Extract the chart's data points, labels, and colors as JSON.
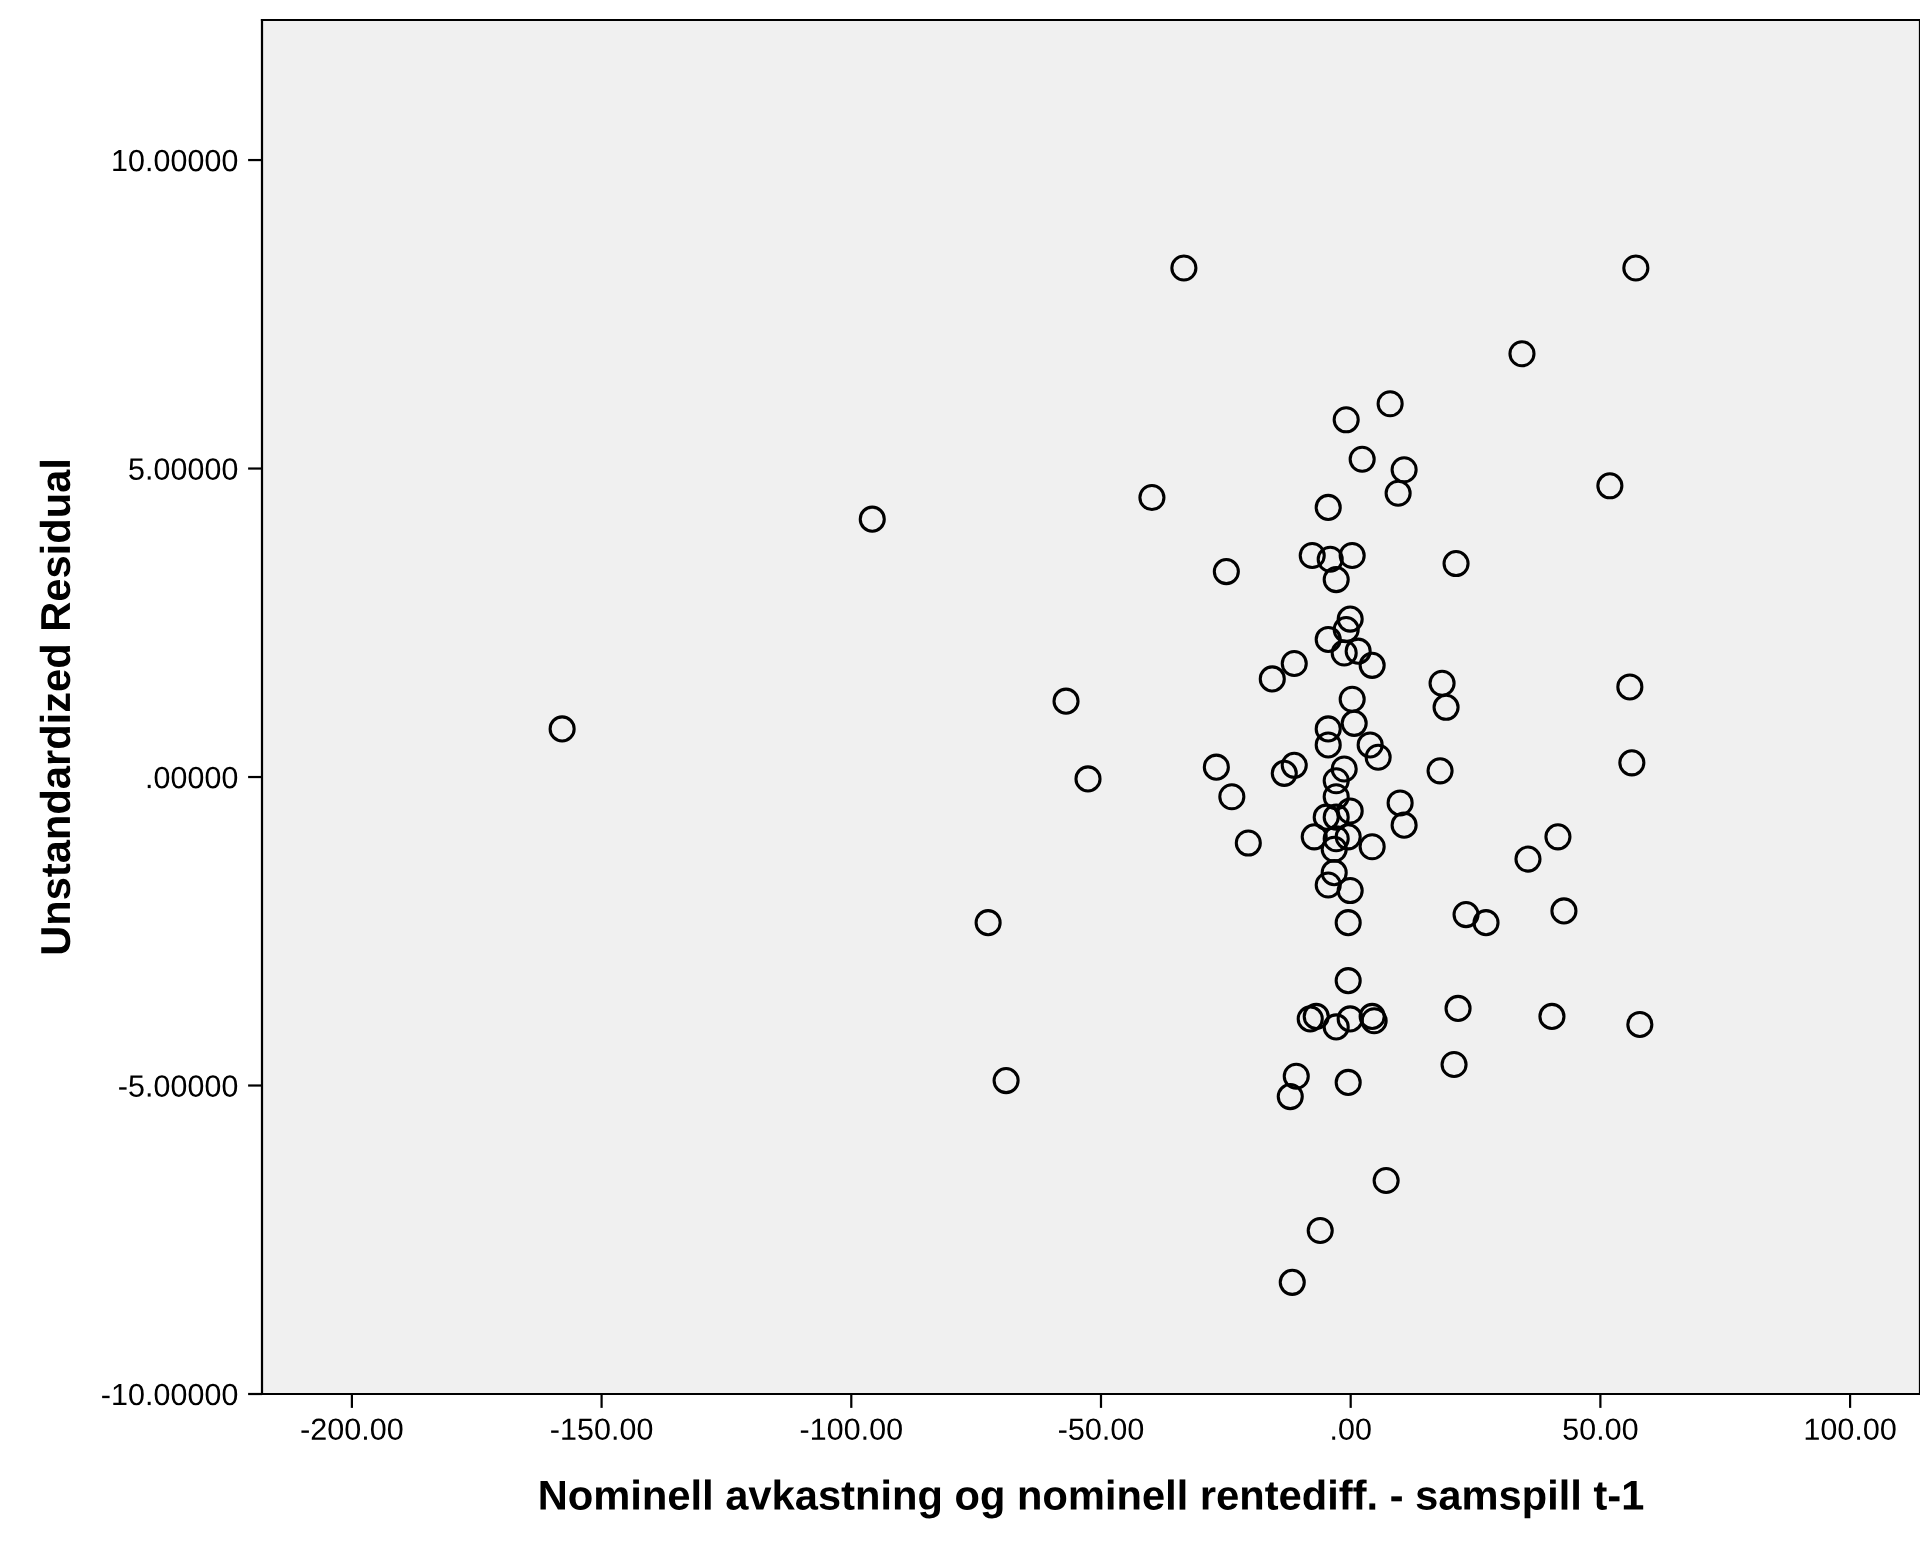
{
  "chart_data": {
    "type": "scatter",
    "xlabel": "Nominell avkastning og nominell rentediff. - samspill t-1",
    "ylabel": "Unstandardized Residual",
    "x": [
      -157.9,
      -95.8,
      -72.6,
      -69.0,
      -57.0,
      -52.6,
      -39.8,
      -33.4,
      -24.9,
      -26.9,
      -23.8,
      -20.5,
      -15.7,
      -13.3,
      -11.3,
      -12.1,
      -10.9,
      -11.3,
      -11.7,
      -6.1,
      7.1,
      -7.7,
      -7.3,
      -8.1,
      -6.9,
      -4.5,
      -4.5,
      -4.5,
      -4.5,
      -4.9,
      -2.9,
      -3.3,
      -3.3,
      -4.5,
      -2.9,
      -2.9,
      -2.9,
      -4.1,
      -2.9,
      0.3,
      -0.1,
      -0.9,
      -1.3,
      1.5,
      4.3,
      0.3,
      0.7,
      3.9,
      5.5,
      -1.3,
      -0.1,
      -0.5,
      4.3,
      -0.1,
      -0.5,
      -0.5,
      -0.1,
      -2.9,
      4.3,
      4.7,
      -0.5,
      7.9,
      -0.9,
      2.3,
      10.7,
      9.5,
      9.9,
      10.7,
      21.1,
      18.3,
      19.1,
      17.9,
      23.1,
      27.1,
      21.5,
      20.7,
      34.3,
      35.5,
      41.5,
      42.7,
      40.3,
      51.9,
      55.9,
      56.3,
      57.1,
      57.9
    ],
    "series": [
      {
        "color": "#000000",
        "values": [
          0.78,
          4.18,
          -2.36,
          -4.92,
          1.23,
          -0.03,
          4.53,
          8.25,
          3.33,
          0.16,
          -0.32,
          -1.07,
          1.59,
          0.06,
          0.19,
          -5.18,
          -4.85,
          1.84,
          -8.19,
          -7.35,
          -6.54,
          3.59,
          -0.97,
          -3.92,
          -3.88,
          4.37,
          2.23,
          0.78,
          0.52,
          -0.65,
          -1.0,
          -1.17,
          -1.55,
          -1.75,
          -0.06,
          -0.32,
          -0.65,
          3.53,
          3.2,
          3.59,
          2.56,
          2.39,
          2.01,
          2.04,
          1.81,
          1.26,
          0.87,
          0.52,
          0.32,
          0.13,
          -0.55,
          -0.97,
          -1.13,
          -1.84,
          -2.36,
          -3.3,
          -3.92,
          -4.05,
          -3.88,
          -3.95,
          -4.95,
          6.05,
          5.79,
          5.15,
          4.98,
          4.6,
          -0.42,
          -0.78,
          3.46,
          1.52,
          1.13,
          0.1,
          -2.23,
          -2.36,
          -3.75,
          -4.66,
          6.86,
          -1.33,
          -0.97,
          -2.17,
          -3.88,
          4.72,
          1.46,
          0.23,
          8.25,
          -4.01
        ]
      }
    ],
    "xlim": [
      -218,
      114
    ],
    "ylim": [
      -10,
      12.27
    ],
    "xticks": [
      {
        "value": -200,
        "label": "-200.00"
      },
      {
        "value": -150,
        "label": "-150.00"
      },
      {
        "value": -100,
        "label": "-100.00"
      },
      {
        "value": -50,
        "label": "-50.00"
      },
      {
        "value": 0,
        "label": ".00"
      },
      {
        "value": 50,
        "label": "50.00"
      },
      {
        "value": 100,
        "label": "100.00"
      }
    ],
    "yticks": [
      {
        "value": -10,
        "label": "-10.00000"
      },
      {
        "value": -5,
        "label": "-5.00000"
      },
      {
        "value": 0,
        "label": ".00000"
      },
      {
        "value": 5,
        "label": "5.00000"
      },
      {
        "value": 10,
        "label": "10.00000"
      }
    ],
    "marker": "circle",
    "grid": false
  }
}
